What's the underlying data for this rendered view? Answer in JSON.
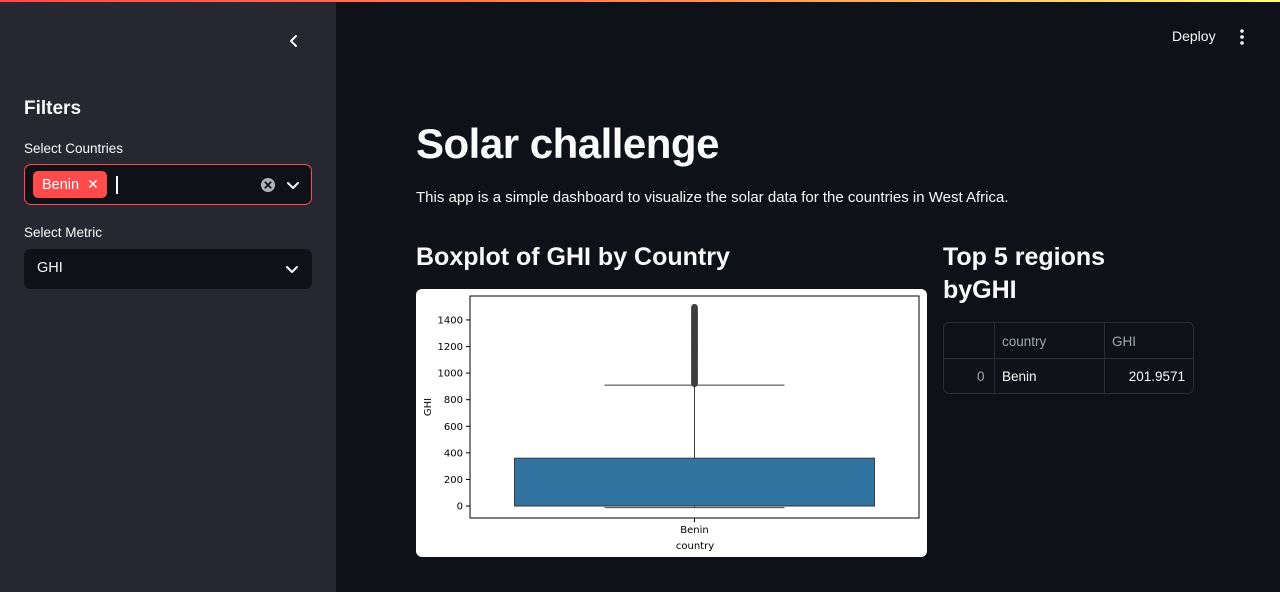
{
  "sidebar": {
    "title": "Filters",
    "countries_label": "Select Countries",
    "selected_country": "Benin",
    "metric_label": "Select Metric",
    "metric_value": "GHI"
  },
  "header": {
    "deploy_label": "Deploy"
  },
  "main": {
    "title": "Solar challenge",
    "description": "This app is a simple dashboard to visualize the solar data for the countries in West Africa.",
    "boxplot_heading": "Boxplot of GHI by Country",
    "table_heading_line1": "Top 5 regions",
    "table_heading_line2": "byGHI"
  },
  "table": {
    "columns": [
      "",
      "country",
      "GHI"
    ],
    "rows": [
      {
        "index": "0",
        "country": "Benin",
        "value": "201.9571"
      }
    ]
  },
  "colors": {
    "accent": "#ff4b4b",
    "box_fill": "#3274a1"
  },
  "chart_data": {
    "type": "box",
    "xlabel": "country",
    "ylabel": "GHI",
    "categories": [
      "Benin"
    ],
    "ylim": [
      -90,
      1580
    ],
    "yticks": [
      0,
      200,
      400,
      600,
      800,
      1000,
      1200,
      1400
    ],
    "boxes": [
      {
        "category": "Benin",
        "whisker_low": -12,
        "q1": 0,
        "median": 1,
        "q3": 360,
        "whisker_high": 910,
        "outlier_min": 920,
        "outlier_max": 1500
      }
    ]
  }
}
